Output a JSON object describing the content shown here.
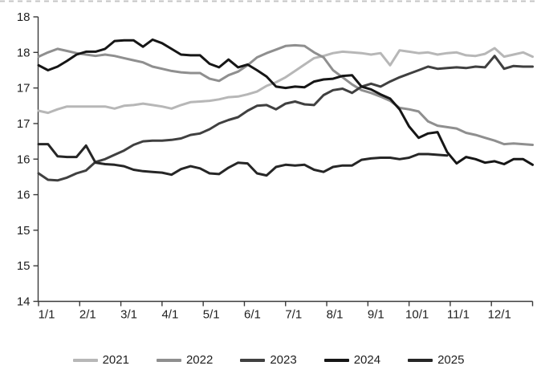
{
  "axis": {
    "y_tick_labels": [
      "18",
      "18",
      "17",
      "17",
      "16",
      "16",
      "15",
      "15",
      "14"
    ],
    "y_tick_values": [
      18,
      17.5,
      17,
      16.5,
      16,
      15.5,
      15,
      14.5,
      14
    ],
    "x_tick_labels": [
      "1/1",
      "2/1",
      "3/1",
      "4/1",
      "5/1",
      "6/1",
      "7/1",
      "8/1",
      "9/1",
      "10/1",
      "11/1",
      "12/1"
    ],
    "axis_color": "#3a3a3a",
    "top_border_color": "#c4c4c4"
  },
  "legend": {
    "items": [
      {
        "label": "2021",
        "color": "#b7b7b7"
      },
      {
        "label": "2022",
        "color": "#8f8f8f"
      },
      {
        "label": "2023",
        "color": "#404040"
      },
      {
        "label": "2024",
        "color": "#161616"
      },
      {
        "label": "2025",
        "color": "#262626"
      }
    ]
  },
  "chart_data": {
    "type": "line",
    "title": "",
    "xlabel": "",
    "ylabel": "",
    "ylim": [
      14,
      18
    ],
    "y_tick_step": 0.5,
    "x_unit": "week",
    "weeks_per_year": 52,
    "grid": false,
    "legend_position": "bottom",
    "series": [
      {
        "name": "2021",
        "color": "#b7b7b7",
        "start_week": 0,
        "values": [
          16.68,
          16.65,
          16.7,
          16.74,
          16.74,
          16.74,
          16.74,
          16.74,
          16.71,
          16.75,
          16.76,
          16.78,
          16.76,
          16.74,
          16.71,
          16.76,
          16.8,
          16.81,
          16.82,
          16.84,
          16.87,
          16.88,
          16.91,
          16.95,
          17.03,
          17.08,
          17.15,
          17.24,
          17.33,
          17.42,
          17.45,
          17.49,
          17.51,
          17.5,
          17.49,
          17.47,
          17.49,
          17.32,
          17.53,
          17.51,
          17.49,
          17.5,
          17.47,
          17.49,
          17.5,
          17.46,
          17.45,
          17.48,
          17.56,
          17.44,
          17.47,
          17.5,
          17.44
        ]
      },
      {
        "name": "2022",
        "color": "#8f8f8f",
        "start_week": 0,
        "values": [
          17.44,
          17.5,
          17.55,
          17.52,
          17.49,
          17.47,
          17.45,
          17.47,
          17.45,
          17.42,
          17.39,
          17.36,
          17.3,
          17.27,
          17.24,
          17.22,
          17.21,
          17.21,
          17.13,
          17.1,
          17.18,
          17.23,
          17.32,
          17.43,
          17.49,
          17.54,
          17.59,
          17.6,
          17.59,
          17.5,
          17.43,
          17.25,
          17.15,
          17.05,
          16.97,
          16.93,
          16.88,
          16.82,
          16.72,
          16.7,
          16.67,
          16.53,
          16.47,
          16.45,
          16.43,
          16.37,
          16.34,
          16.3,
          16.26,
          16.21,
          16.22,
          16.21,
          16.2
        ]
      },
      {
        "name": "2023",
        "color": "#404040",
        "start_week": 0,
        "values": [
          15.8,
          15.71,
          15.7,
          15.74,
          15.8,
          15.84,
          15.96,
          16.0,
          16.06,
          16.12,
          16.2,
          16.25,
          16.26,
          16.26,
          16.27,
          16.29,
          16.34,
          16.36,
          16.42,
          16.5,
          16.55,
          16.59,
          16.68,
          16.75,
          16.76,
          16.7,
          16.78,
          16.81,
          16.77,
          16.76,
          16.9,
          16.97,
          16.99,
          16.93,
          17.02,
          17.06,
          17.02,
          17.09,
          17.15,
          17.2,
          17.25,
          17.3,
          17.27,
          17.28,
          17.29,
          17.28,
          17.3,
          17.29,
          17.45,
          17.27,
          17.31,
          17.3,
          17.3
        ]
      },
      {
        "name": "2024",
        "color": "#161616",
        "start_week": 0,
        "values": [
          17.32,
          17.25,
          17.3,
          17.38,
          17.47,
          17.51,
          17.51,
          17.55,
          17.66,
          17.67,
          17.67,
          17.58,
          17.68,
          17.63,
          17.55,
          17.47,
          17.46,
          17.46,
          17.34,
          17.29,
          17.4,
          17.29,
          17.33,
          17.25,
          17.16,
          17.02,
          17.0,
          17.02,
          17.01,
          17.09,
          17.12,
          17.13,
          17.17,
          17.18,
          17.02,
          16.98,
          16.91,
          16.85,
          16.7,
          16.46,
          16.3,
          16.36,
          16.38,
          16.1,
          15.94,
          16.03,
          16.0,
          15.95,
          15.97,
          15.93,
          16.0,
          16.0,
          15.92
        ]
      },
      {
        "name": "2025",
        "color": "#262626",
        "start_week": 0,
        "values": [
          16.21,
          16.21,
          16.04,
          16.03,
          16.03,
          16.19,
          15.95,
          15.93,
          15.92,
          15.9,
          15.85,
          15.83,
          15.82,
          15.81,
          15.78,
          15.86,
          15.9,
          15.87,
          15.8,
          15.79,
          15.88,
          15.95,
          15.94,
          15.8,
          15.77,
          15.89,
          15.92,
          15.91,
          15.92,
          15.85,
          15.82,
          15.89,
          15.91,
          15.91,
          15.99,
          16.01,
          16.02,
          16.02,
          16.0,
          16.02,
          16.07,
          16.07,
          16.06,
          16.05
        ]
      }
    ]
  },
  "layout_note": "2025 series ends near 11/1 (44 weekly points); all other series span the full year (53 weekly points)."
}
